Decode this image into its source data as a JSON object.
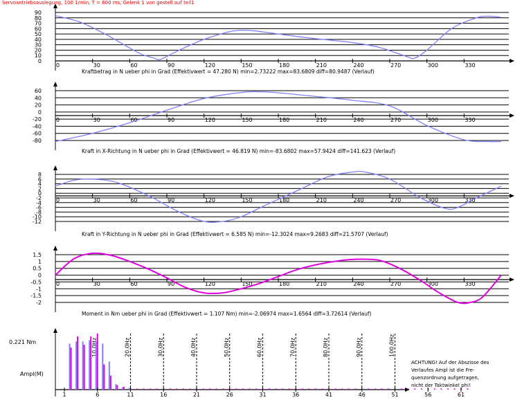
{
  "header": "Servoantriebsauslegung, 100 1/min, T = 600 ms, Gelenk 1 von gestell auf teil1",
  "colors": {
    "header": "#e00000",
    "blue": "#8080ff",
    "magenta": "#e000e0",
    "axis": "#000000"
  },
  "chart_data": [
    {
      "type": "line",
      "title": "Kraftbetrag in N ueber phi in Grad (Effektivwert = 47.280 N)  min=2.73222  max=83.6809  diff=80.9487 (Verlauf)",
      "xlim": [
        0,
        360
      ],
      "xticks": [
        0,
        30,
        60,
        90,
        120,
        150,
        180,
        210,
        240,
        270,
        300,
        330
      ],
      "ylim": [
        0,
        90
      ],
      "yticks": [
        0,
        10,
        20,
        30,
        40,
        50,
        60,
        70,
        80,
        90
      ],
      "series": [
        {
          "color": "#8080ff",
          "x": [
            0,
            20,
            40,
            60,
            70,
            80,
            85,
            100,
            120,
            140,
            150,
            160,
            180,
            200,
            220,
            240,
            260,
            275,
            285,
            290,
            300,
            320,
            340,
            350,
            360
          ],
          "y": [
            84,
            72,
            50,
            24,
            12,
            5,
            3,
            20,
            40,
            54,
            57,
            56,
            50,
            44,
            39,
            34,
            26,
            15,
            7,
            5,
            20,
            60,
            80,
            83,
            81
          ]
        }
      ]
    },
    {
      "type": "line",
      "title": "Kraft in X-Richtung in N ueber phi in Grad (Effektivwert = 46.819 N)  min=-83.6802  max=57.9424  diff=141.623 (Verlauf)",
      "xlim": [
        0,
        360
      ],
      "xticks": [
        0,
        30,
        60,
        90,
        120,
        150,
        180,
        210,
        240,
        270,
        300,
        330
      ],
      "ylim": [
        -80,
        60
      ],
      "yticks": [
        -80,
        -60,
        -40,
        -20,
        0,
        20,
        40,
        60
      ],
      "series": [
        {
          "color": "#8080ff",
          "x": [
            0,
            30,
            60,
            90,
            120,
            150,
            165,
            180,
            210,
            240,
            270,
            300,
            330,
            350,
            360
          ],
          "y": [
            -83,
            -60,
            -30,
            5,
            38,
            55,
            57,
            54,
            44,
            33,
            17,
            -38,
            -78,
            -83,
            -83
          ]
        }
      ]
    },
    {
      "type": "line",
      "title": "Kraft in Y-Richtung in N ueber phi in Grad (Effektivwert = 6.585 N)  min=-12.3024  max=9.2683  diff=21.5707 (Verlauf)",
      "xlim": [
        0,
        360
      ],
      "xticks": [
        0,
        30,
        60,
        90,
        120,
        150,
        180,
        210,
        240,
        270,
        300,
        330
      ],
      "ylim": [
        -12,
        8
      ],
      "yticks": [
        -12,
        -10,
        -8,
        -6,
        -4,
        -2,
        0,
        2,
        4,
        6,
        8
      ],
      "series": [
        {
          "color": "#8080ff",
          "x": [
            0,
            15,
            30,
            50,
            75,
            100,
            120,
            135,
            150,
            170,
            195,
            220,
            240,
            250,
            270,
            295,
            315,
            325,
            340,
            360
          ],
          "y": [
            3,
            5.5,
            6,
            4.5,
            -1,
            -8,
            -12,
            -12,
            -10,
            -5,
            1,
            7,
            9,
            9,
            6,
            -2,
            -6.5,
            -6,
            -2,
            3
          ]
        }
      ]
    },
    {
      "type": "line",
      "title": "Moment in Nm ueber phi in Grad (Effektivwert = 1.107 Nm)  min=-2.06974  max=1.6564  diff=3.72614 (Verlauf)",
      "xlim": [
        0,
        360
      ],
      "xticks": [
        0,
        30,
        60,
        90,
        120,
        150,
        180,
        210,
        240,
        270,
        300,
        330
      ],
      "ylim": [
        -2,
        1.5
      ],
      "yticks": [
        -2,
        -1.5,
        -1,
        -0.5,
        0,
        0.5,
        1,
        1.5
      ],
      "series": [
        {
          "color": "#e000e0",
          "x": [
            0,
            15,
            30,
            45,
            60,
            75,
            90,
            105,
            120,
            135,
            150,
            165,
            180,
            195,
            210,
            225,
            240,
            255,
            265,
            280,
            295,
            310,
            325,
            335,
            345,
            360
          ],
          "y": [
            0,
            1.2,
            1.6,
            1.45,
            1.0,
            0.45,
            -0.2,
            -0.9,
            -1.3,
            -1.3,
            -1.0,
            -0.6,
            -0.1,
            0.4,
            0.75,
            1.0,
            1.15,
            1.15,
            1.0,
            0.4,
            -0.4,
            -1.3,
            -2.0,
            -2.0,
            -1.6,
            0
          ]
        }
      ]
    },
    {
      "type": "bar",
      "ylabel_value": "0.221 Nm",
      "ylabel": "Ampl(M)",
      "xticks": [
        1,
        6,
        11,
        16,
        21,
        26,
        31,
        36,
        41,
        46,
        51,
        56,
        61
      ],
      "freq_labels": [
        "10.0Hz",
        "20.0Hz",
        "30.0Hz",
        "40.0Hz",
        "50.0Hz",
        "60.0Hz",
        "70.0Hz",
        "80.0Hz",
        "90.0Hz",
        "100.0Hz"
      ],
      "freq_positions": [
        6,
        11,
        16,
        21,
        26,
        31,
        36,
        41,
        46,
        51
      ],
      "bars_blue": [
        0.0,
        0.82,
        0.86,
        0.86,
        0.88,
        0.86,
        0.82,
        0.5,
        0.1,
        0.04,
        0.03
      ],
      "bars_magenta": [
        0.0,
        0.75,
        0.95,
        0.8,
        0.95,
        1.0,
        0.45,
        0.25,
        0.08,
        0.05,
        0.03,
        0.02,
        0.02,
        0.02,
        0.02,
        0.02,
        0.02,
        0.02,
        0.02,
        0.02,
        0.02,
        0.02,
        0.02,
        0.02,
        0.02,
        0.02,
        0.02,
        0.02,
        0.02,
        0.02,
        0.02,
        0.02,
        0.02,
        0.02,
        0.02,
        0.02,
        0.02,
        0.02,
        0.02,
        0.02,
        0.02,
        0.02,
        0.02,
        0.02,
        0.02,
        0.02,
        0.02,
        0.02,
        0.02,
        0.02,
        0.02,
        0.02,
        0.02,
        0.02,
        0.02,
        0.02,
        0.02,
        0.02,
        0.02,
        0.02,
        0.02,
        0.02
      ]
    }
  ],
  "note_lines": [
    "ACHTUNG! Auf der Abszisse des",
    "Verlaufes Ampl ist die Fre-",
    "quenzordnung aufgetragen,",
    "nicht der Taktwinkel phi!"
  ]
}
